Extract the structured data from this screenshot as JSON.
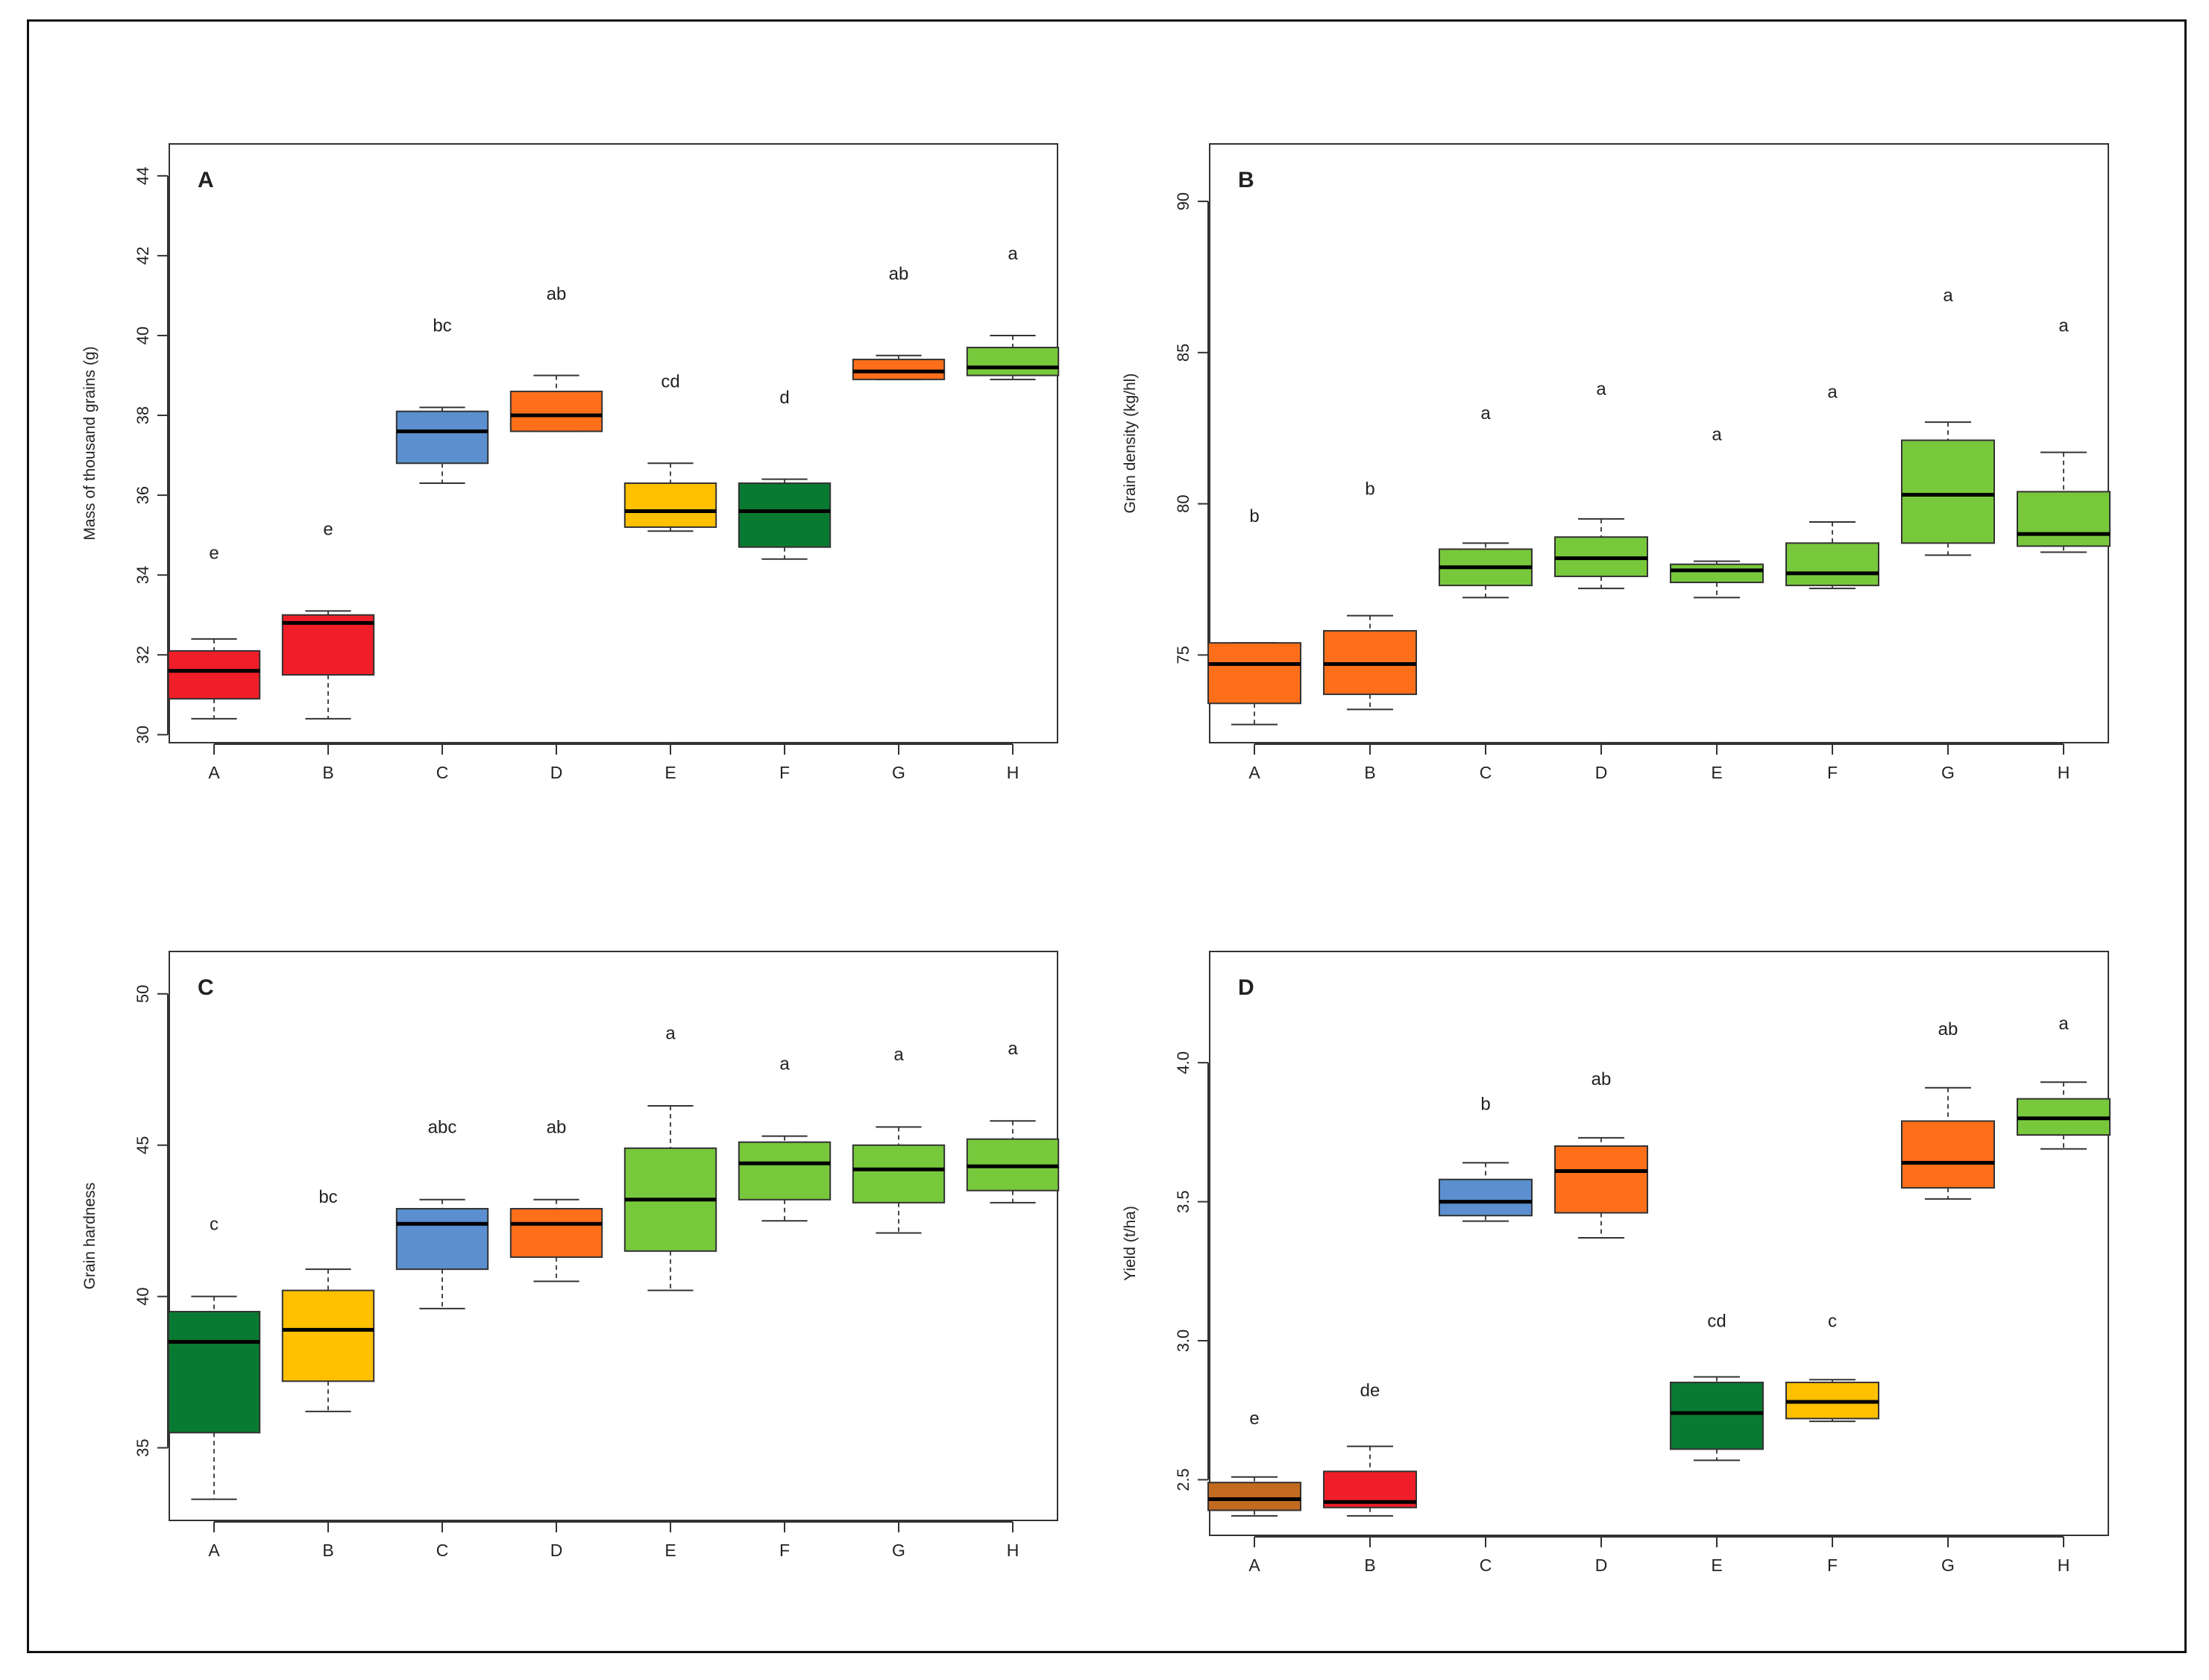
{
  "colors": {
    "red": "#f01e28",
    "orange": "#ff6f1a",
    "blue": "#5b8fcf",
    "yellow": "#ffc000",
    "dark_green": "#097a31",
    "light_green": "#78c83c",
    "brown": "#c26a20"
  },
  "chart_data": [
    {
      "type": "box",
      "panel_label": "A",
      "ylabel": "Mass of thousand grains (g)",
      "xlabel": "",
      "ylim": [
        29.8,
        44.8
      ],
      "yticks": [
        30,
        32,
        34,
        36,
        38,
        40,
        42,
        44
      ],
      "categories": [
        "A",
        "B",
        "C",
        "D",
        "E",
        "F",
        "G",
        "H"
      ],
      "boxes": [
        {
          "min": 30.4,
          "q1": 30.9,
          "median": 31.6,
          "q3": 32.1,
          "max": 32.4,
          "letter": "e",
          "color": "red",
          "letter_y": 34.4
        },
        {
          "min": 30.4,
          "q1": 31.5,
          "median": 32.8,
          "q3": 33.0,
          "max": 33.1,
          "letter": "e",
          "color": "red",
          "letter_y": 35.0
        },
        {
          "min": 36.3,
          "q1": 36.8,
          "median": 37.6,
          "q3": 38.1,
          "max": 38.2,
          "letter": "bc",
          "color": "blue",
          "letter_y": 40.1
        },
        {
          "min": 37.6,
          "q1": 37.6,
          "median": 38.0,
          "q3": 38.6,
          "max": 39.0,
          "letter": "ab",
          "color": "orange",
          "letter_y": 40.9
        },
        {
          "min": 35.1,
          "q1": 35.2,
          "median": 35.6,
          "q3": 36.3,
          "max": 36.8,
          "letter": "cd",
          "color": "yellow",
          "letter_y": 38.7
        },
        {
          "min": 34.4,
          "q1": 34.7,
          "median": 35.6,
          "q3": 36.3,
          "max": 36.4,
          "letter": "d",
          "color": "dark_green",
          "letter_y": 38.3
        },
        {
          "min": 38.9,
          "q1": 38.9,
          "median": 39.1,
          "q3": 39.4,
          "max": 39.5,
          "letter": "ab",
          "color": "orange",
          "letter_y": 41.4
        },
        {
          "min": 38.9,
          "q1": 39.0,
          "median": 39.2,
          "q3": 39.7,
          "max": 40.0,
          "letter": "a",
          "color": "light_green",
          "letter_y": 41.9
        }
      ]
    },
    {
      "type": "box",
      "panel_label": "B",
      "ylabel": "Grain density (kg/hl)",
      "xlabel": "",
      "ylim": [
        72.1,
        91.9
      ],
      "yticks": [
        75,
        80,
        85,
        90
      ],
      "categories": [
        "A",
        "B",
        "C",
        "D",
        "E",
        "F",
        "G",
        "H"
      ],
      "boxes": [
        {
          "min": 72.7,
          "q1": 73.4,
          "median": 74.7,
          "q3": 75.4,
          "max": 75.4,
          "letter": "b",
          "color": "orange",
          "letter_y": 79.4
        },
        {
          "min": 73.2,
          "q1": 73.7,
          "median": 74.7,
          "q3": 75.8,
          "max": 76.3,
          "letter": "b",
          "color": "orange",
          "letter_y": 80.3
        },
        {
          "min": 76.9,
          "q1": 77.3,
          "median": 77.9,
          "q3": 78.5,
          "max": 78.7,
          "letter": "a",
          "color": "light_green",
          "letter_y": 82.8
        },
        {
          "min": 77.2,
          "q1": 77.6,
          "median": 78.2,
          "q3": 78.9,
          "max": 79.5,
          "letter": "a",
          "color": "light_green",
          "letter_y": 83.6
        },
        {
          "min": 76.9,
          "q1": 77.4,
          "median": 77.8,
          "q3": 78.0,
          "max": 78.1,
          "letter": "a",
          "color": "light_green",
          "letter_y": 82.1
        },
        {
          "min": 77.2,
          "q1": 77.3,
          "median": 77.7,
          "q3": 78.7,
          "max": 79.4,
          "letter": "a",
          "color": "light_green",
          "letter_y": 83.5
        },
        {
          "min": 78.3,
          "q1": 78.7,
          "median": 80.3,
          "q3": 82.1,
          "max": 82.7,
          "letter": "a",
          "color": "light_green",
          "letter_y": 86.7
        },
        {
          "min": 78.4,
          "q1": 78.6,
          "median": 79.0,
          "q3": 80.4,
          "max": 81.7,
          "letter": "a",
          "color": "light_green",
          "letter_y": 85.7
        }
      ]
    },
    {
      "type": "box",
      "panel_label": "C",
      "ylabel": "Grain hardness",
      "xlabel": "",
      "ylim": [
        32.6,
        51.4
      ],
      "yticks": [
        35,
        40,
        45,
        50
      ],
      "categories": [
        "A",
        "B",
        "C",
        "D",
        "E",
        "F",
        "G",
        "H"
      ],
      "boxes": [
        {
          "min": 33.3,
          "q1": 35.5,
          "median": 38.5,
          "q3": 39.5,
          "max": 40.0,
          "letter": "c",
          "color": "dark_green",
          "letter_y": 42.2
        },
        {
          "min": 36.2,
          "q1": 37.2,
          "median": 38.9,
          "q3": 40.2,
          "max": 40.9,
          "letter": "bc",
          "color": "yellow",
          "letter_y": 43.1
        },
        {
          "min": 39.6,
          "q1": 40.9,
          "median": 42.4,
          "q3": 42.9,
          "max": 43.2,
          "letter": "abc",
          "color": "blue",
          "letter_y": 45.4
        },
        {
          "min": 40.5,
          "q1": 41.3,
          "median": 42.4,
          "q3": 42.9,
          "max": 43.2,
          "letter": "ab",
          "color": "orange",
          "letter_y": 45.4
        },
        {
          "min": 40.2,
          "q1": 41.5,
          "median": 43.2,
          "q3": 44.9,
          "max": 46.3,
          "letter": "a",
          "color": "light_green",
          "letter_y": 48.5
        },
        {
          "min": 42.5,
          "q1": 43.2,
          "median": 44.4,
          "q3": 45.1,
          "max": 45.3,
          "letter": "a",
          "color": "light_green",
          "letter_y": 47.5
        },
        {
          "min": 42.1,
          "q1": 43.1,
          "median": 44.2,
          "q3": 45.0,
          "max": 45.6,
          "letter": "a",
          "color": "light_green",
          "letter_y": 47.8
        },
        {
          "min": 43.1,
          "q1": 43.5,
          "median": 44.3,
          "q3": 45.2,
          "max": 45.8,
          "letter": "a",
          "color": "light_green",
          "letter_y": 48.0
        }
      ]
    },
    {
      "type": "box",
      "panel_label": "D",
      "ylabel": "Yield (t/ha)",
      "xlabel": "",
      "ylim": [
        2.3,
        4.4
      ],
      "yticks": [
        2.5,
        3.0,
        3.5,
        4.0
      ],
      "tick_format": "fixed1",
      "categories": [
        "A",
        "B",
        "C",
        "D",
        "E",
        "F",
        "G",
        "H"
      ],
      "boxes": [
        {
          "min": 2.37,
          "q1": 2.39,
          "median": 2.43,
          "q3": 2.49,
          "max": 2.51,
          "letter": "e",
          "color": "brown",
          "letter_y": 2.7
        },
        {
          "min": 2.37,
          "q1": 2.4,
          "median": 2.42,
          "q3": 2.53,
          "max": 2.62,
          "letter": "de",
          "color": "red",
          "letter_y": 2.8
        },
        {
          "min": 3.43,
          "q1": 3.45,
          "median": 3.5,
          "q3": 3.58,
          "max": 3.64,
          "letter": "b",
          "color": "blue",
          "letter_y": 3.83
        },
        {
          "min": 3.37,
          "q1": 3.46,
          "median": 3.61,
          "q3": 3.7,
          "max": 3.73,
          "letter": "ab",
          "color": "orange",
          "letter_y": 3.92
        },
        {
          "min": 2.57,
          "q1": 2.61,
          "median": 2.74,
          "q3": 2.85,
          "max": 2.87,
          "letter": "cd",
          "color": "dark_green",
          "letter_y": 3.05
        },
        {
          "min": 2.71,
          "q1": 2.72,
          "median": 2.78,
          "q3": 2.85,
          "max": 2.86,
          "letter": "c",
          "color": "yellow",
          "letter_y": 3.05
        },
        {
          "min": 3.51,
          "q1": 3.55,
          "median": 3.64,
          "q3": 3.79,
          "max": 3.91,
          "letter": "ab",
          "color": "orange",
          "letter_y": 4.1
        },
        {
          "min": 3.69,
          "q1": 3.74,
          "median": 3.8,
          "q3": 3.87,
          "max": 3.93,
          "letter": "a",
          "color": "light_green",
          "letter_y": 4.12
        }
      ]
    }
  ]
}
